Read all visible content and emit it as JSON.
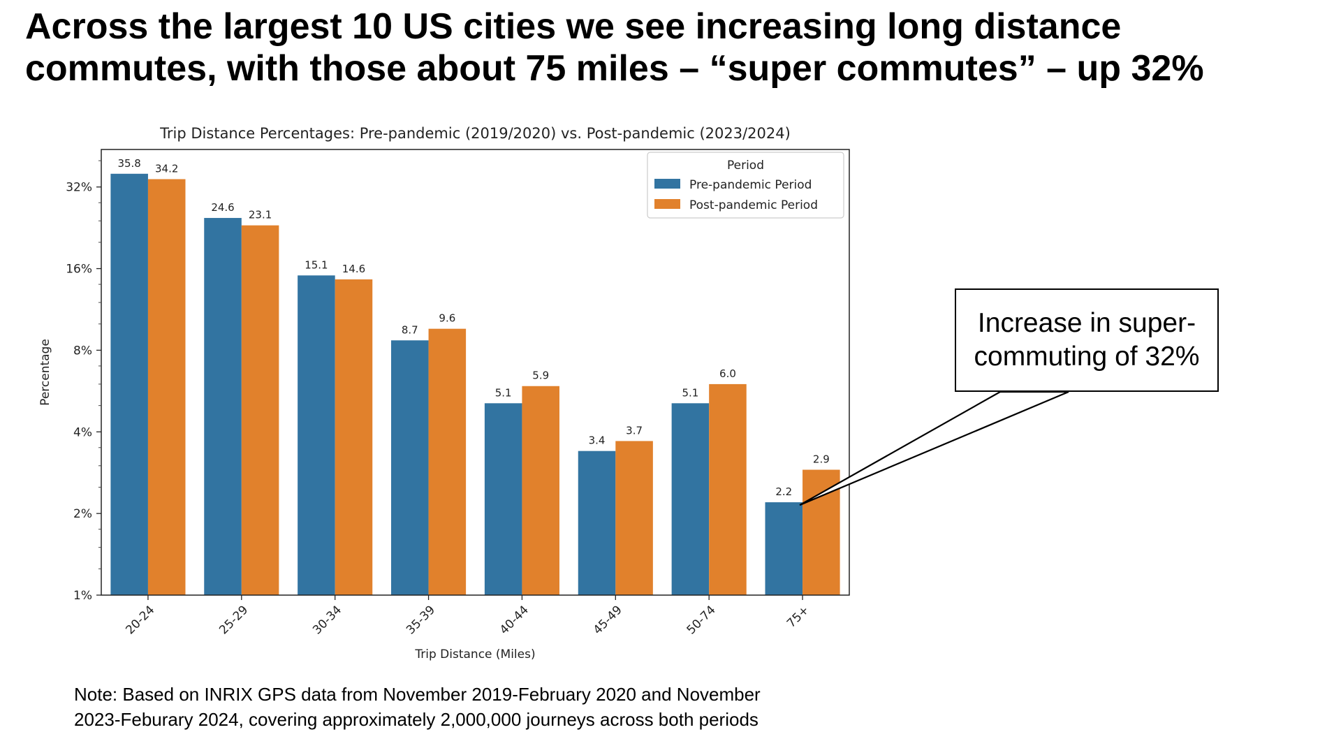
{
  "headline": {
    "line1": "Across the largest 10 US cities we see increasing long distance",
    "line2": "commutes, with those about 75 miles – “super commutes” – up 32%"
  },
  "chart_data": {
    "type": "bar",
    "title": "Trip Distance Percentages: Pre-pandemic (2019/2020) vs. Post-pandemic (2023/2024)",
    "xlabel": "Trip Distance (Miles)",
    "ylabel": "Percentage",
    "y_scale": "log2",
    "ylim": [
      1,
      44
    ],
    "yticks": [
      1,
      2,
      4,
      8,
      16,
      32
    ],
    "ytick_labels": [
      "1%",
      "2%",
      "4%",
      "8%",
      "16%",
      "32%"
    ],
    "categories": [
      "20-24",
      "25-29",
      "30-34",
      "35-39",
      "40-44",
      "45-49",
      "50-74",
      "75+"
    ],
    "series": [
      {
        "name": "Pre-pandemic Period",
        "color": "#3274a1",
        "values": [
          35.8,
          24.6,
          15.1,
          8.7,
          5.1,
          3.4,
          5.1,
          2.2
        ],
        "labels": [
          "35.8",
          "24.6",
          "15.1",
          "8.7",
          "5.1",
          "3.4",
          "5.1",
          "2.2"
        ]
      },
      {
        "name": "Post-pandemic Period",
        "color": "#e1812c",
        "values": [
          34.2,
          23.1,
          14.6,
          9.6,
          5.9,
          3.7,
          6.0,
          2.9
        ],
        "labels": [
          "34.2",
          "23.1",
          "14.6",
          "9.6",
          "5.9",
          "3.7",
          "6.0",
          "2.9"
        ]
      }
    ],
    "legend": {
      "title": "Period",
      "position": "top-right"
    },
    "grid": false
  },
  "callout": {
    "text": "Increase in super-commuting of 32%",
    "line1": "Increase in super-",
    "line2": "commuting of 32%"
  },
  "note": {
    "line1": "Note: Based on INRIX GPS data from November 2019-February 2020 and November",
    "line2": "2023-Feburary 2024, covering approximately 2,000,000 journeys across both periods"
  }
}
